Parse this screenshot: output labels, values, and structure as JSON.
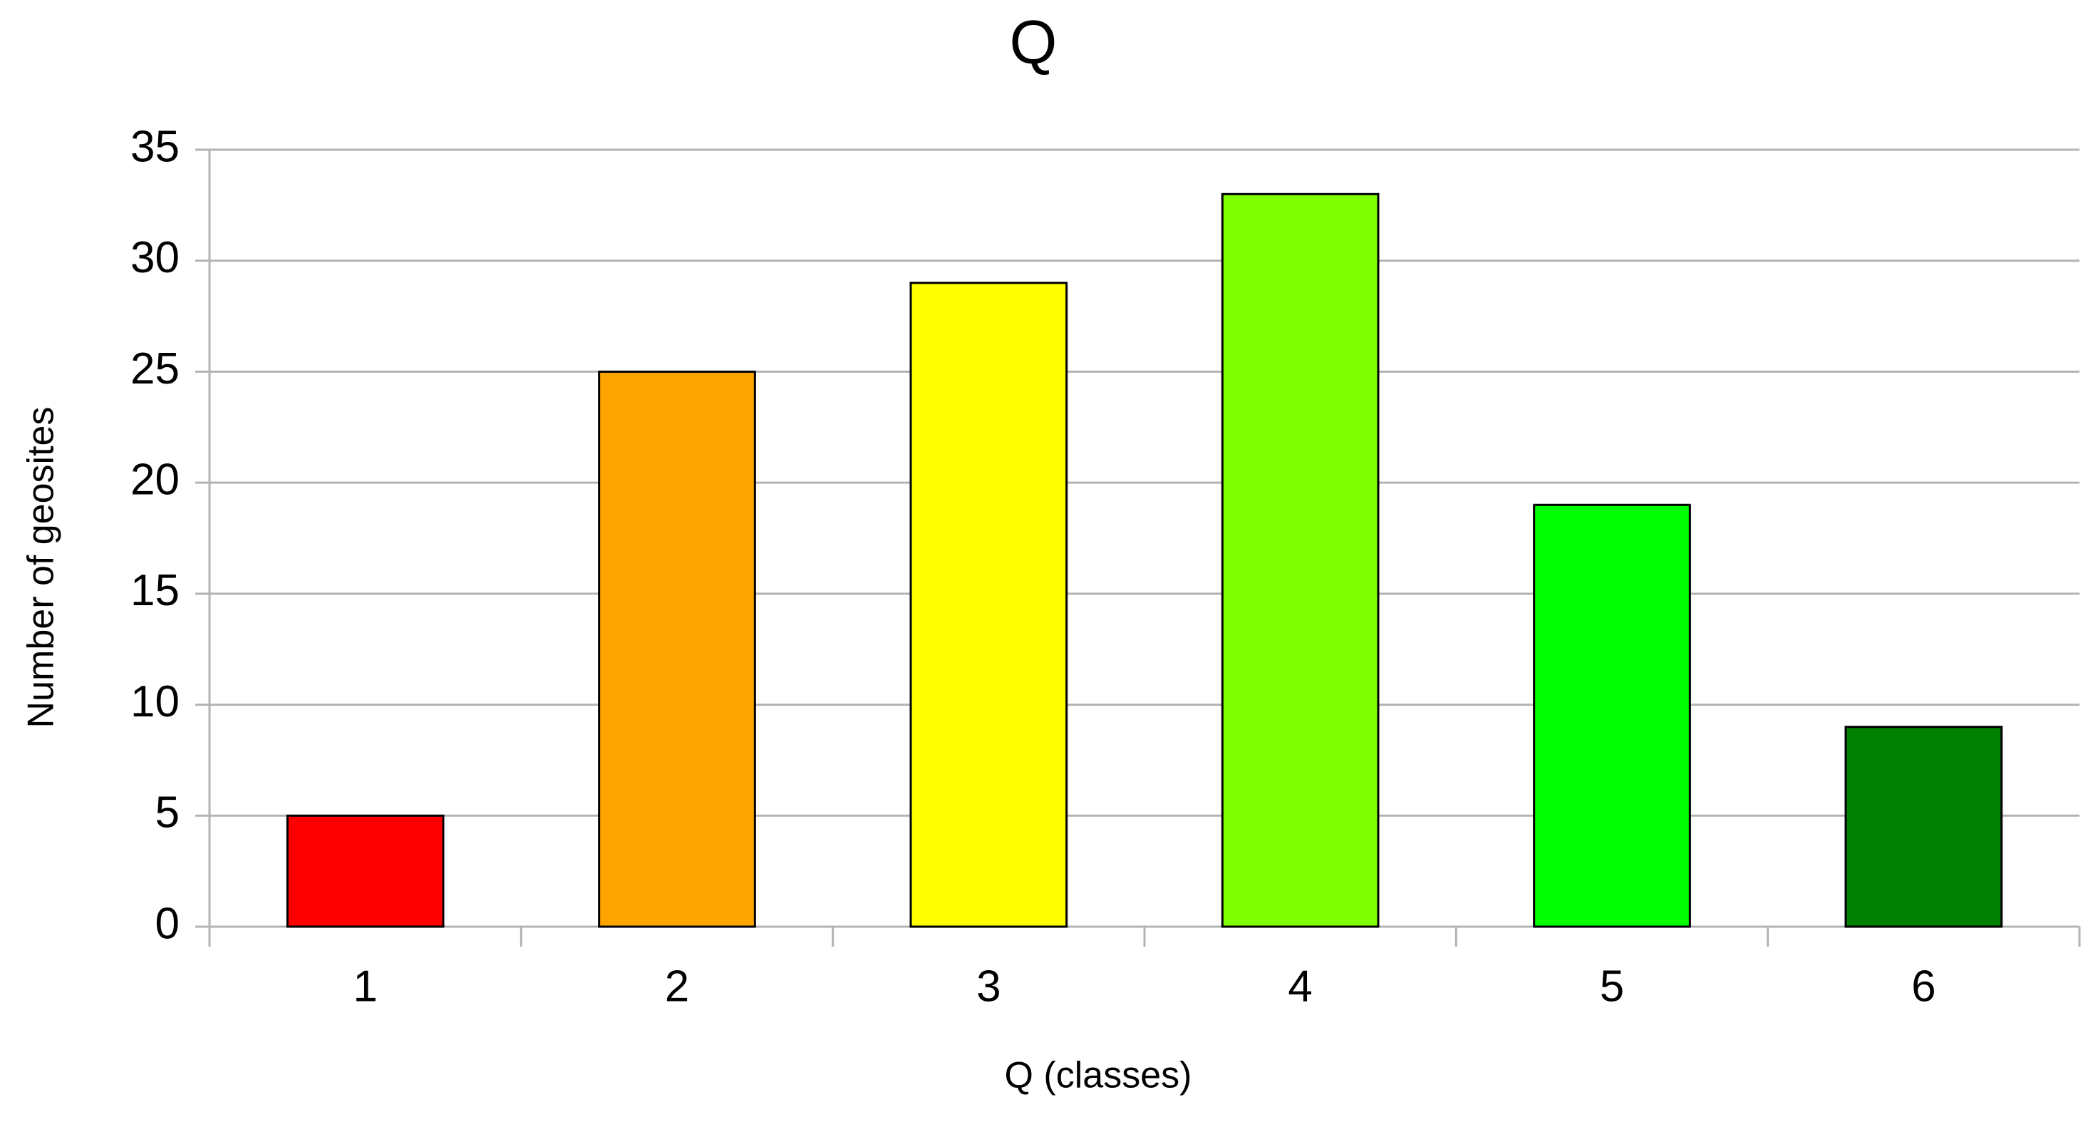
{
  "chart_data": {
    "type": "bar",
    "title": "Q",
    "x_label": "Q (classes)",
    "y_label": "Number of geosites",
    "categories": [
      "1",
      "2",
      "3",
      "4",
      "5",
      "6"
    ],
    "values": [
      5,
      25,
      29,
      33,
      19,
      9
    ],
    "colors": [
      "#ff0000",
      "#ffa500",
      "#ffff00",
      "#80ff00",
      "#00ff00",
      "#008000"
    ],
    "ylim": [
      0,
      35
    ],
    "yticks": [
      0,
      5,
      10,
      15,
      20,
      25,
      30,
      35
    ],
    "grid": true
  }
}
